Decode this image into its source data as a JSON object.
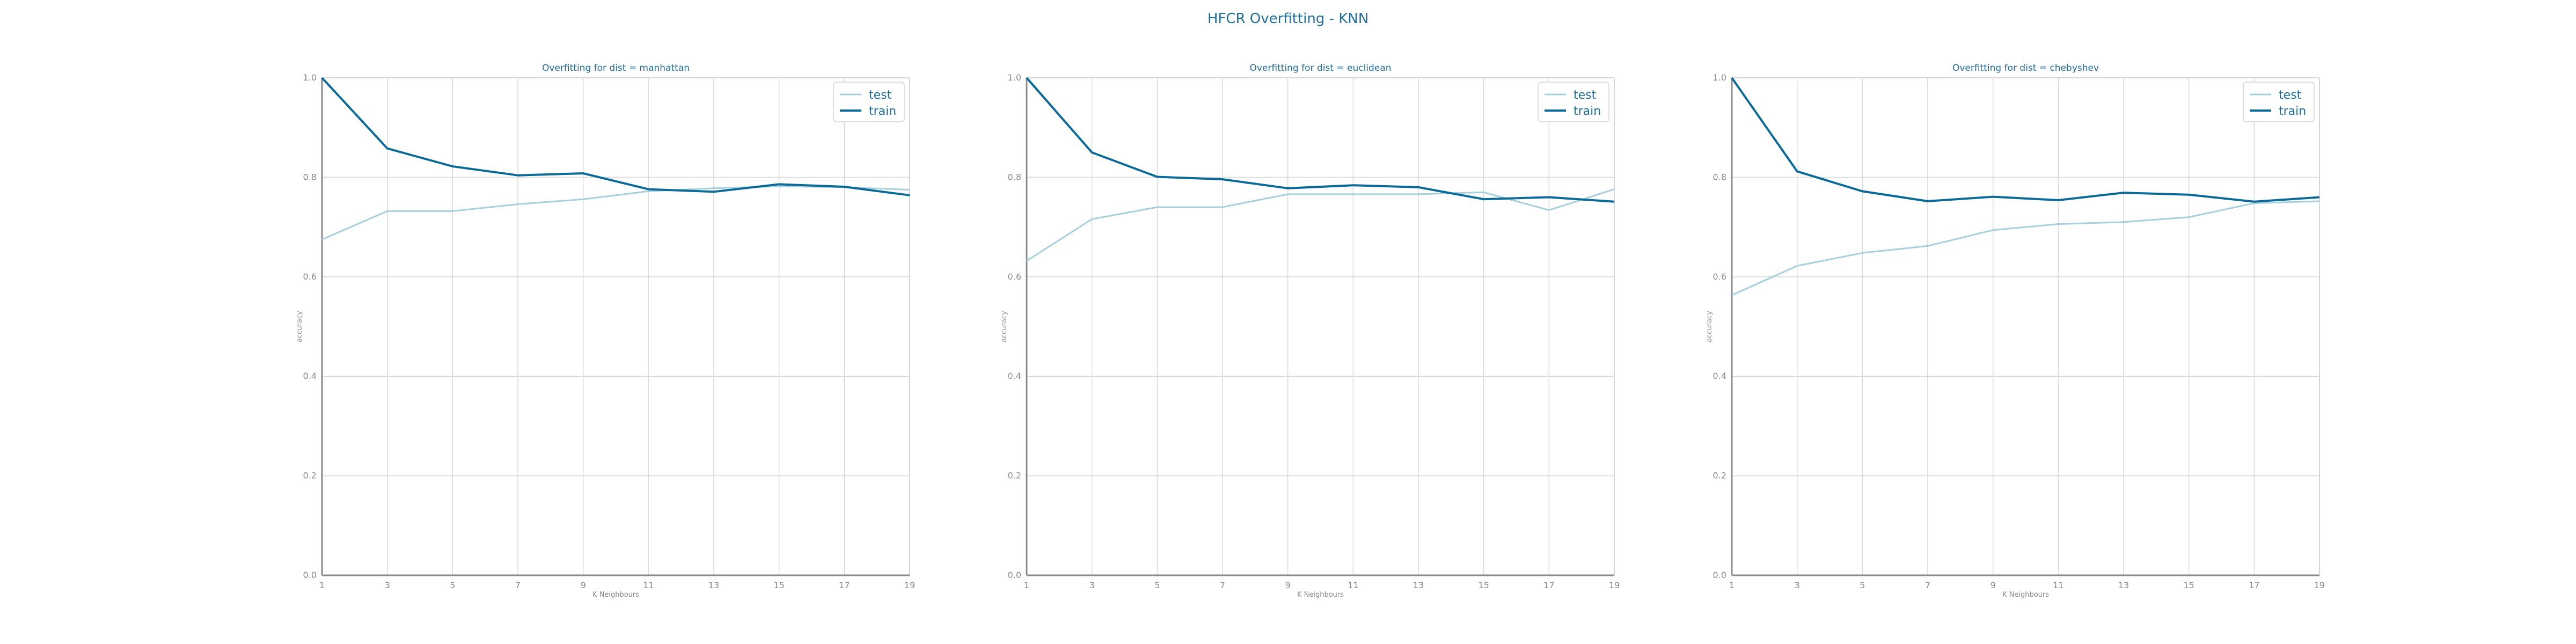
{
  "figure": {
    "suptitle": "HFCR Overfitting - KNN"
  },
  "colors": {
    "test": "#a6d0dd",
    "train": "#0b6a97",
    "text": "#1f6e9e",
    "tick": "#8a8a8a"
  },
  "chart_data": [
    {
      "type": "line",
      "title": "Overfitting for dist = manhattan",
      "xlabel": "K Neighbours",
      "ylabel": "accuracy",
      "x": [
        1,
        3,
        5,
        7,
        9,
        11,
        13,
        15,
        17,
        19
      ],
      "ylim": [
        0.0,
        1.0
      ],
      "yticks": [
        0.0,
        0.2,
        0.4,
        0.6,
        0.8,
        1.0
      ],
      "legend_position": "upper right",
      "grid": true,
      "series": [
        {
          "name": "test",
          "values": [
            0.675,
            0.732,
            0.732,
            0.746,
            0.756,
            0.772,
            0.778,
            0.782,
            0.78,
            0.775
          ]
        },
        {
          "name": "train",
          "values": [
            1.0,
            0.858,
            0.822,
            0.804,
            0.808,
            0.776,
            0.771,
            0.786,
            0.781,
            0.764
          ]
        }
      ]
    },
    {
      "type": "line",
      "title": "Overfitting for dist = euclidean",
      "xlabel": "K Neighbours",
      "ylabel": "accuracy",
      "x": [
        1,
        3,
        5,
        7,
        9,
        11,
        13,
        15,
        17,
        19
      ],
      "ylim": [
        0.0,
        1.0
      ],
      "yticks": [
        0.0,
        0.2,
        0.4,
        0.6,
        0.8,
        1.0
      ],
      "legend_position": "upper right",
      "grid": true,
      "series": [
        {
          "name": "test",
          "values": [
            0.632,
            0.716,
            0.74,
            0.74,
            0.766,
            0.766,
            0.766,
            0.77,
            0.734,
            0.776
          ]
        },
        {
          "name": "train",
          "values": [
            1.0,
            0.85,
            0.801,
            0.796,
            0.778,
            0.784,
            0.78,
            0.756,
            0.76,
            0.751
          ]
        }
      ]
    },
    {
      "type": "line",
      "title": "Overfitting for dist = chebyshev",
      "xlabel": "K Neighbours",
      "ylabel": "accuracy",
      "x": [
        1,
        3,
        5,
        7,
        9,
        11,
        13,
        15,
        17,
        19
      ],
      "ylim": [
        0.0,
        1.0
      ],
      "yticks": [
        0.0,
        0.2,
        0.4,
        0.6,
        0.8,
        1.0
      ],
      "legend_position": "upper right",
      "grid": true,
      "series": [
        {
          "name": "test",
          "values": [
            0.563,
            0.622,
            0.648,
            0.662,
            0.694,
            0.706,
            0.71,
            0.72,
            0.748,
            0.752
          ]
        },
        {
          "name": "train",
          "values": [
            1.0,
            0.812,
            0.772,
            0.752,
            0.761,
            0.754,
            0.769,
            0.765,
            0.751,
            0.76
          ]
        }
      ]
    }
  ]
}
